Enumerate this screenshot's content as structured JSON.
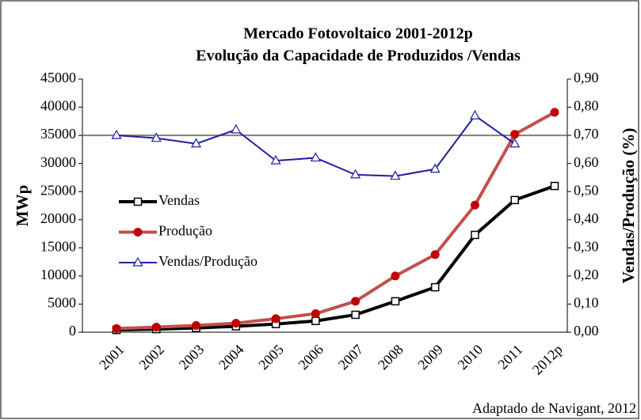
{
  "chart_data": {
    "type": "line",
    "title": "Mercado Fotovoltaico 2001-2012p",
    "subtitle": "Evolução da Capacidade de Produzidos /Vendas",
    "y_label": "MWp",
    "y2_label": "Vendas/Produção (%)",
    "annotation": "Adaptado de Navigant, 2012",
    "categories": [
      "2001",
      "2002",
      "2003",
      "2004",
      "2005",
      "2006",
      "2007",
      "2008",
      "2009",
      "2010",
      "2011",
      "2012p"
    ],
    "series": [
      {
        "name": "Vendas",
        "color": "#000000",
        "marker": "square",
        "values": [
          400,
          550,
          750,
          1050,
          1450,
          2000,
          3100,
          5500,
          8000,
          17300,
          23500,
          26000
        ]
      },
      {
        "name": "Produção",
        "color": "#c0504d",
        "marker": "circle",
        "values": [
          650,
          900,
          1200,
          1600,
          2400,
          3300,
          5500,
          10000,
          13800,
          22600,
          35200,
          39100
        ]
      },
      {
        "name": "Vendas/Produção",
        "color": "#1f1f9f",
        "marker": "triangle",
        "axis": "y2",
        "values": [
          0.7,
          0.69,
          0.67,
          0.72,
          0.61,
          0.62,
          0.56,
          0.555,
          0.58,
          0.77,
          0.67,
          null
        ]
      }
    ],
    "ylim": [
      0,
      45000
    ],
    "yticks": [
      0,
      5000,
      10000,
      15000,
      20000,
      25000,
      30000,
      35000,
      40000,
      45000
    ],
    "y2lim": [
      0,
      0.9
    ],
    "y2ticks": [
      {
        "value": 0,
        "label": "0,00"
      },
      {
        "value": 0.1,
        "label": "0,10"
      },
      {
        "value": 0.2,
        "label": "0,20"
      },
      {
        "value": 0.3,
        "label": "0,30"
      },
      {
        "value": 0.4,
        "label": "0,40"
      },
      {
        "value": 0.5,
        "label": "0,50"
      },
      {
        "value": 0.6,
        "label": "0,60"
      },
      {
        "value": 0.7,
        "label": "0,70"
      },
      {
        "value": 0.8,
        "label": "0,80"
      },
      {
        "value": 0.9,
        "label": "0,90"
      }
    ],
    "hline": 35000,
    "legend": "left"
  }
}
